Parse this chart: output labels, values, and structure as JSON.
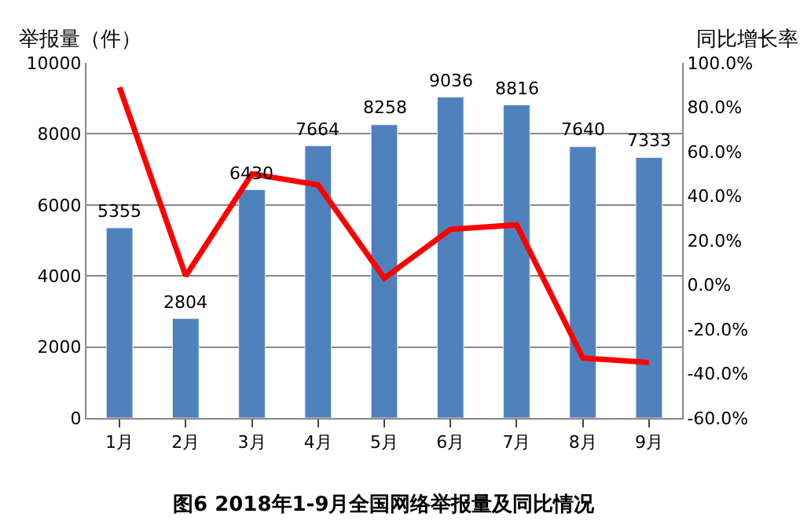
{
  "chart_data": {
    "type": "bar",
    "ylabel": "举报量（件）",
    "y2label": "同比增长率",
    "annotations": [
      "图6 2018年1-9月全国网络举报量及同比情况"
    ],
    "categories": [
      "1月",
      "2月",
      "3月",
      "4月",
      "5月",
      "6月",
      "7月",
      "8月",
      "9月"
    ],
    "series": [
      {
        "color": "#4f81bd",
        "values": [
          5355,
          2804,
          6430,
          7664,
          8258,
          9036,
          8816,
          7640,
          7333
        ],
        "value_labels": [
          "5355",
          "2804",
          "6430",
          "7664",
          "8258",
          "9036",
          "8816",
          "7640",
          "7333"
        ]
      },
      {
        "type": "line",
        "axis": "y2",
        "color": "#ff0000",
        "values": [
          89,
          4,
          50,
          45,
          3,
          25,
          27,
          -33,
          -35
        ]
      }
    ],
    "ylim": [
      0,
      10000
    ],
    "yticks": [
      0,
      2000,
      4000,
      6000,
      8000,
      10000
    ],
    "y2lim": [
      -60,
      100
    ],
    "y2ticks": [
      {
        "value": -60,
        "label": "-60.0%"
      },
      {
        "value": -40,
        "label": "-40.0%"
      },
      {
        "value": -20,
        "label": "-20.0%"
      },
      {
        "value": 0,
        "label": "0.0%"
      },
      {
        "value": 20,
        "label": "20.0%"
      },
      {
        "value": 40,
        "label": "40.0%"
      },
      {
        "value": 60,
        "label": "60.0%"
      },
      {
        "value": 80,
        "label": "80.0%"
      },
      {
        "value": 100,
        "label": "100.0%"
      }
    ],
    "grid": "y",
    "marker": "none",
    "line_style": "solid"
  }
}
